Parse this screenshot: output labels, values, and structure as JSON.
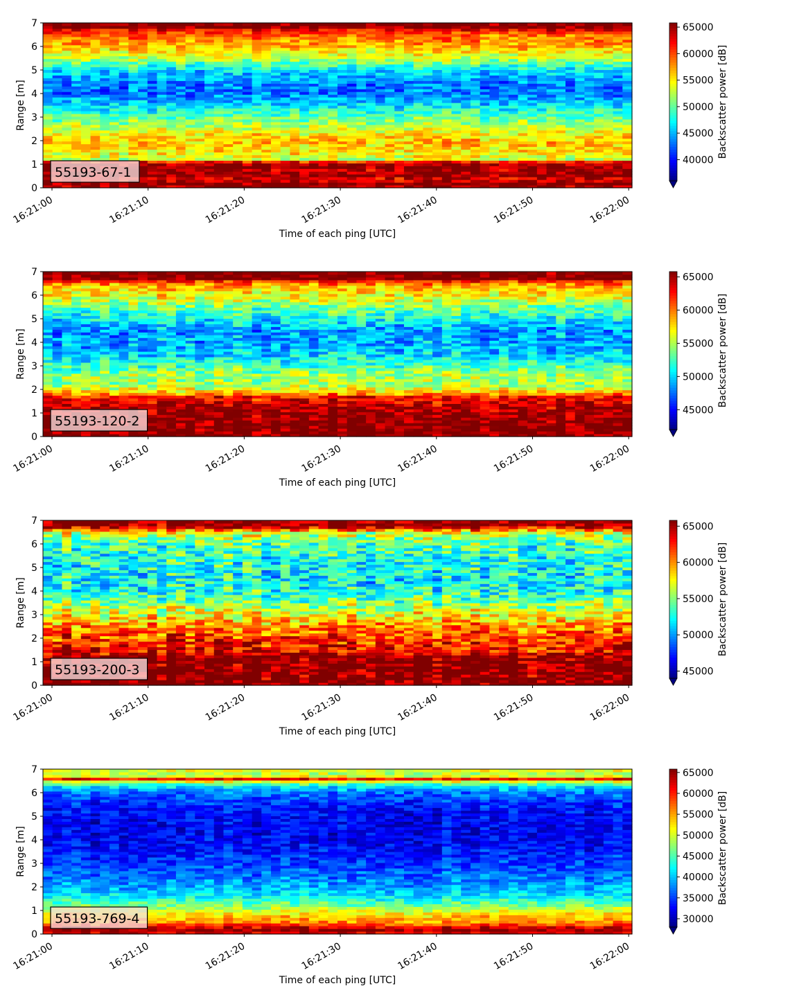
{
  "chart_data": [
    {
      "type": "heatmap",
      "panel_label": "55193-67-1",
      "xlabel": "Time of each ping [UTC]",
      "ylabel": "Range [m]",
      "colorbar_label": "Backscatter power [dB]",
      "x_ticks": [
        "16:21:00",
        "16:21:10",
        "16:21:20",
        "16:21:30",
        "16:21:40",
        "16:21:50",
        "16:22:00"
      ],
      "y_ticks": [
        0,
        1,
        2,
        3,
        4,
        5,
        6,
        7
      ],
      "ylim": [
        0,
        7
      ],
      "colorbar_ticks": [
        40000,
        45000,
        50000,
        55000,
        60000,
        65000
      ],
      "clim": [
        36000,
        65800
      ],
      "colormap": "jet",
      "n_pings": 62,
      "n_bins": 60,
      "profile": [
        [
          0.0,
          60000
        ],
        [
          0.05,
          64500
        ],
        [
          0.2,
          66000
        ],
        [
          0.35,
          62000
        ],
        [
          0.55,
          66000
        ],
        [
          0.75,
          64000
        ],
        [
          0.95,
          66000
        ],
        [
          1.1,
          62500
        ],
        [
          1.2,
          53000
        ],
        [
          1.5,
          55000
        ],
        [
          2.0,
          56500
        ],
        [
          2.5,
          53500
        ],
        [
          3.0,
          50000
        ],
        [
          3.5,
          46500
        ],
        [
          4.0,
          43000
        ],
        [
          4.5,
          43500
        ],
        [
          5.0,
          46500
        ],
        [
          5.5,
          52500
        ],
        [
          6.0,
          57000
        ],
        [
          6.5,
          59000
        ],
        [
          6.7,
          62000
        ],
        [
          6.8,
          66000
        ],
        [
          7.0,
          66000
        ]
      ],
      "noise": 2800
    },
    {
      "type": "heatmap",
      "panel_label": "55193-120-2",
      "xlabel": "Time of each ping [UTC]",
      "ylabel": "Range [m]",
      "colorbar_label": "Backscatter power [dB]",
      "x_ticks": [
        "16:21:00",
        "16:21:10",
        "16:21:20",
        "16:21:30",
        "16:21:40",
        "16:21:50",
        "16:22:00"
      ],
      "y_ticks": [
        0,
        1,
        2,
        3,
        4,
        5,
        6,
        7
      ],
      "ylim": [
        0,
        7
      ],
      "colorbar_ticks": [
        45000,
        50000,
        55000,
        60000,
        65000
      ],
      "clim": [
        42000,
        65800
      ],
      "colormap": "jet",
      "n_pings": 62,
      "n_bins": 60,
      "profile": [
        [
          0.0,
          66000
        ],
        [
          0.6,
          66000
        ],
        [
          1.3,
          64500
        ],
        [
          1.7,
          62500
        ],
        [
          1.9,
          58000
        ],
        [
          2.2,
          54500
        ],
        [
          2.6,
          55000
        ],
        [
          3.0,
          52500
        ],
        [
          3.5,
          50000
        ],
        [
          4.0,
          49000
        ],
        [
          4.5,
          48500
        ],
        [
          5.0,
          51000
        ],
        [
          5.5,
          53500
        ],
        [
          6.0,
          57000
        ],
        [
          6.4,
          58500
        ],
        [
          6.6,
          62000
        ],
        [
          6.7,
          66000
        ],
        [
          7.0,
          66000
        ]
      ],
      "noise": 2600
    },
    {
      "type": "heatmap",
      "panel_label": "55193-200-3",
      "xlabel": "Time of each ping [UTC]",
      "ylabel": "Range [m]",
      "colorbar_label": "Backscatter power [dB]",
      "x_ticks": [
        "16:21:00",
        "16:21:10",
        "16:21:20",
        "16:21:30",
        "16:21:40",
        "16:21:50",
        "16:22:00"
      ],
      "y_ticks": [
        0,
        1,
        2,
        3,
        4,
        5,
        6,
        7
      ],
      "ylim": [
        0,
        7
      ],
      "colorbar_ticks": [
        45000,
        50000,
        55000,
        60000,
        65000
      ],
      "clim": [
        44000,
        65800
      ],
      "colormap": "jet",
      "n_pings": 62,
      "n_bins": 60,
      "profile": [
        [
          0.0,
          66000
        ],
        [
          1.2,
          66000
        ],
        [
          1.4,
          63500
        ],
        [
          2.0,
          62000
        ],
        [
          2.5,
          60500
        ],
        [
          3.0,
          57500
        ],
        [
          3.5,
          55000
        ],
        [
          4.0,
          53000
        ],
        [
          4.5,
          52000
        ],
        [
          5.0,
          52500
        ],
        [
          5.5,
          53000
        ],
        [
          6.0,
          54000
        ],
        [
          6.5,
          57000
        ],
        [
          6.7,
          64000
        ],
        [
          6.85,
          66000
        ],
        [
          7.0,
          66000
        ]
      ],
      "noise": 3200
    },
    {
      "type": "heatmap",
      "panel_label": "55193-769-4",
      "xlabel": "Time of each ping [UTC]",
      "ylabel": "Range [m]",
      "colorbar_label": "Backscatter power [dB]",
      "x_ticks": [
        "16:21:00",
        "16:21:10",
        "16:21:20",
        "16:21:30",
        "16:21:40",
        "16:21:50",
        "16:22:00"
      ],
      "y_ticks": [
        0,
        1,
        2,
        3,
        4,
        5,
        6,
        7
      ],
      "ylim": [
        0,
        7
      ],
      "colorbar_ticks": [
        30000,
        35000,
        40000,
        45000,
        50000,
        55000,
        60000,
        65000
      ],
      "clim": [
        28000,
        65800
      ],
      "colormap": "jet",
      "n_pings": 62,
      "n_bins": 60,
      "profile": [
        [
          0.0,
          60000
        ],
        [
          0.15,
          66000
        ],
        [
          0.3,
          62000
        ],
        [
          0.5,
          56000
        ],
        [
          0.9,
          52000
        ],
        [
          1.2,
          47000
        ],
        [
          1.6,
          42000
        ],
        [
          2.0,
          39000
        ],
        [
          2.5,
          37000
        ],
        [
          3.0,
          35000
        ],
        [
          3.5,
          33500
        ],
        [
          4.0,
          32500
        ],
        [
          4.5,
          32000
        ],
        [
          5.0,
          32500
        ],
        [
          5.5,
          34000
        ],
        [
          6.0,
          37000
        ],
        [
          6.3,
          42000
        ],
        [
          6.5,
          52000
        ],
        [
          6.6,
          62000
        ],
        [
          6.75,
          46000
        ],
        [
          6.9,
          52000
        ],
        [
          7.0,
          48000
        ]
      ],
      "noise": 3000
    }
  ]
}
